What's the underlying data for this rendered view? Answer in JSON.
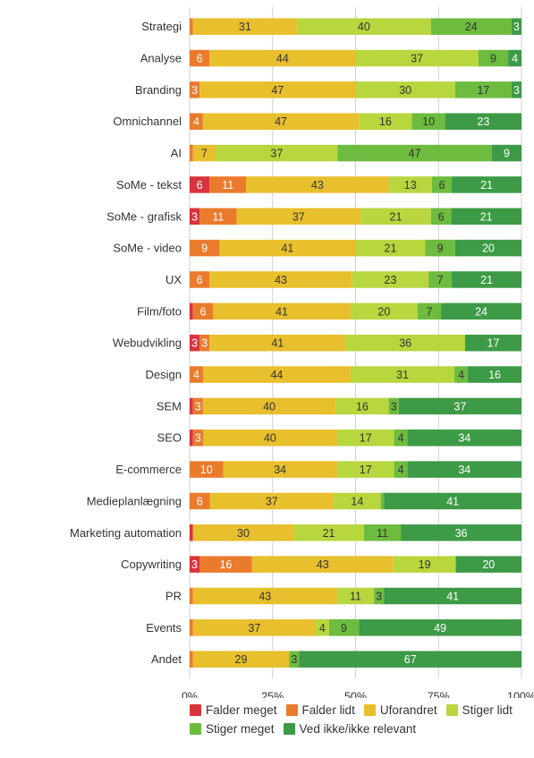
{
  "chart_data": {
    "type": "bar",
    "orientation": "horizontal",
    "stacked": "percent",
    "categories": [
      "Strategi",
      "Analyse",
      "Branding",
      "Omnichannel",
      "AI",
      "SoMe - tekst",
      "SoMe - grafisk",
      "SoMe - video",
      "UX",
      "Film/foto",
      "Webudvikling",
      "Design",
      "SEM",
      "SEO",
      "E-commerce",
      "Medieplanlægning",
      "Marketing automation",
      "Copywriting",
      "PR",
      "Events",
      "Andet"
    ],
    "series": [
      {
        "name": "Falder meget",
        "color": "#d8343d",
        "values": [
          0,
          0,
          0,
          0,
          0,
          6,
          3,
          0,
          0,
          1,
          3,
          0,
          1,
          1,
          0,
          0,
          1,
          3,
          0,
          0,
          0
        ],
        "labels": [
          "",
          "",
          "",
          "",
          "",
          "6",
          "3",
          "",
          "",
          "",
          "3",
          "",
          "",
          "",
          "",
          "",
          "",
          "3",
          "",
          "",
          ""
        ]
      },
      {
        "name": "Falder lidt",
        "color": "#ea7b2d",
        "values": [
          1,
          6,
          3,
          4,
          1,
          11,
          11,
          9,
          6,
          6,
          3,
          4,
          3,
          3,
          10,
          6,
          0,
          16,
          1,
          1,
          1
        ],
        "labels": [
          "",
          "6",
          "3",
          "4",
          "",
          "11",
          "11",
          "9",
          "6",
          "6",
          "3",
          "4",
          "3",
          "3",
          "10",
          "6",
          "",
          "16",
          "",
          "",
          ""
        ]
      },
      {
        "name": "Uforandret",
        "color": "#e8bf2c",
        "values": [
          31,
          44,
          47,
          47,
          7,
          43,
          37,
          41,
          43,
          41,
          41,
          44,
          40,
          40,
          34,
          37,
          30,
          43,
          43,
          37,
          29
        ],
        "labels": [
          "31",
          "44",
          "47",
          "47",
          "7",
          "43",
          "37",
          "41",
          "43",
          "41",
          "41",
          "44",
          "40",
          "40",
          "34",
          "37",
          "30",
          "43",
          "43",
          "37",
          "29"
        ]
      },
      {
        "name": "Stiger lidt",
        "color": "#b8d63d",
        "values": [
          40,
          37,
          30,
          16,
          37,
          13,
          21,
          21,
          23,
          20,
          36,
          31,
          16,
          17,
          17,
          14,
          21,
          19,
          11,
          4,
          0
        ],
        "labels": [
          "40",
          "37",
          "30",
          "16",
          "37",
          "13",
          "21",
          "21",
          "23",
          "20",
          "36",
          "31",
          "16",
          "17",
          "17",
          "14",
          "21",
          "19",
          "11",
          "4",
          ""
        ]
      },
      {
        "name": "Stiger meget",
        "color": "#6dbb3f",
        "values": [
          24,
          9,
          17,
          10,
          47,
          6,
          6,
          9,
          7,
          7,
          0,
          4,
          3,
          4,
          4,
          1,
          11,
          0,
          3,
          9,
          3
        ],
        "labels": [
          "24",
          "9",
          "17",
          "10",
          "47",
          "6",
          "6",
          "9",
          "7",
          "7",
          "",
          "4",
          "3",
          "4",
          "4",
          "",
          "11",
          "",
          "3",
          "9",
          "3"
        ]
      },
      {
        "name": "Ved ikke/ikke relevant",
        "color": "#3d9a46",
        "values": [
          3,
          4,
          3,
          23,
          9,
          21,
          21,
          20,
          21,
          24,
          17,
          16,
          37,
          34,
          34,
          41,
          36,
          20,
          41,
          49,
          67
        ],
        "labels": [
          "3",
          "4",
          "3",
          "23",
          "9",
          "21",
          "21",
          "20",
          "21",
          "24",
          "17",
          "16",
          "37",
          "34",
          "34",
          "41",
          "36",
          "20",
          "41",
          "49",
          "67"
        ]
      }
    ],
    "x_ticks": [
      "0%",
      "25%",
      "50%",
      "75%",
      "100%"
    ],
    "xlim": [
      0,
      100
    ],
    "grid": true,
    "legend_position": "bottom"
  }
}
